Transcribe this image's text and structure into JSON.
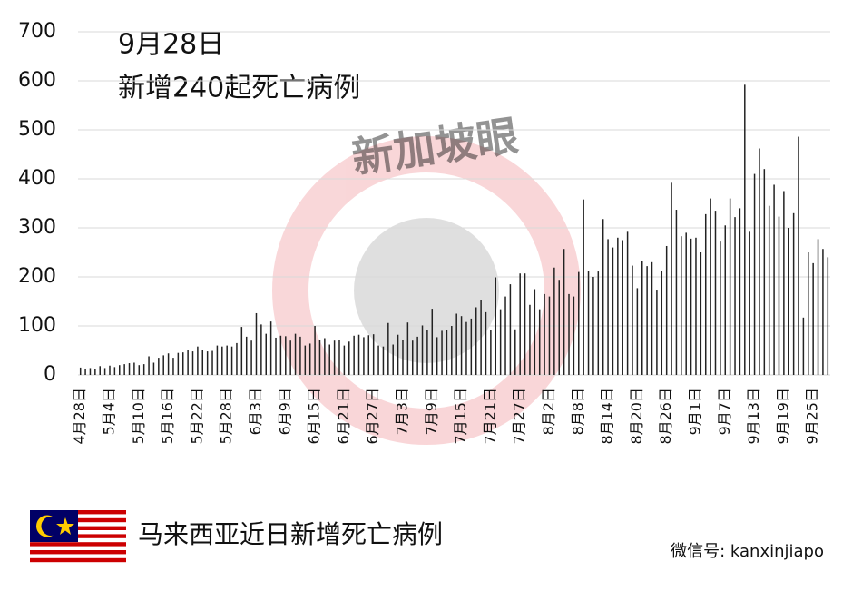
{
  "chart_data": {
    "type": "bar",
    "title": "9月28日",
    "subtitle": "新增240起死亡病例",
    "caption": "马来西亚近日新增死亡病例",
    "watermark": "新加坡眼",
    "credit": "微信号: kanxinjiapo",
    "color": "#222222",
    "grid": true,
    "ylim": [
      0,
      700
    ],
    "yticks": [
      0,
      100,
      200,
      300,
      400,
      500,
      600,
      700
    ],
    "categories": [
      "4月28日",
      null,
      null,
      null,
      null,
      null,
      "5月4日",
      null,
      null,
      null,
      null,
      null,
      "5月10日",
      null,
      null,
      null,
      null,
      null,
      "5月16日",
      null,
      null,
      null,
      null,
      null,
      "5月22日",
      null,
      null,
      null,
      null,
      null,
      "5月28日",
      null,
      null,
      null,
      null,
      null,
      "6月3日",
      null,
      null,
      null,
      null,
      null,
      "6月9日",
      null,
      null,
      null,
      null,
      null,
      "6月15日",
      null,
      null,
      null,
      null,
      null,
      "6月21日",
      null,
      null,
      null,
      null,
      null,
      "6月27日",
      null,
      null,
      null,
      null,
      null,
      "7月3日",
      null,
      null,
      null,
      null,
      null,
      "7月9日",
      null,
      null,
      null,
      null,
      null,
      "7月15日",
      null,
      null,
      null,
      null,
      null,
      "7月21日",
      null,
      null,
      null,
      null,
      null,
      "7月27日",
      null,
      null,
      null,
      null,
      null,
      "8月2日",
      null,
      null,
      null,
      null,
      null,
      "8月8日",
      null,
      null,
      null,
      null,
      null,
      "8月14日",
      null,
      null,
      null,
      null,
      null,
      "8月20日",
      null,
      null,
      null,
      null,
      null,
      "8月26日",
      null,
      null,
      null,
      null,
      null,
      "9月1日",
      null,
      null,
      null,
      null,
      null,
      "9月7日",
      null,
      null,
      null,
      null,
      null,
      "9月13日",
      null,
      null,
      null,
      null,
      null,
      "9月19日",
      null,
      null,
      null,
      null,
      null,
      "9月25日",
      null,
      null,
      null
    ],
    "values": [
      15,
      13,
      14,
      12,
      18,
      14,
      19,
      16,
      20,
      22,
      24,
      25,
      20,
      22,
      38,
      25,
      35,
      40,
      44,
      35,
      45,
      46,
      50,
      48,
      58,
      50,
      48,
      49,
      60,
      58,
      60,
      58,
      65,
      98,
      78,
      70,
      126,
      103,
      84,
      109,
      76,
      80,
      79,
      70,
      84,
      78,
      60,
      64,
      100,
      72,
      75,
      62,
      70,
      72,
      60,
      68,
      80,
      82,
      77,
      81,
      83,
      60,
      58,
      106,
      62,
      82,
      72,
      107,
      70,
      78,
      101,
      92,
      135,
      77,
      90,
      92,
      100,
      125,
      120,
      108,
      115,
      138,
      153,
      128,
      92,
      199,
      134,
      160,
      185,
      93,
      207,
      207,
      143,
      175,
      134,
      165,
      160,
      219,
      194,
      257,
      165,
      160,
      210,
      358,
      212,
      200,
      211,
      318,
      277,
      260,
      280,
      275,
      292,
      223,
      177,
      232,
      222,
      230,
      174,
      212,
      263,
      392,
      337,
      283,
      290,
      278,
      280,
      250,
      328,
      360,
      335,
      272,
      305,
      360,
      322,
      340,
      592,
      292,
      410,
      462,
      420,
      345,
      388,
      323,
      375,
      300,
      330,
      486,
      117,
      250,
      228,
      277,
      257,
      240
    ]
  }
}
